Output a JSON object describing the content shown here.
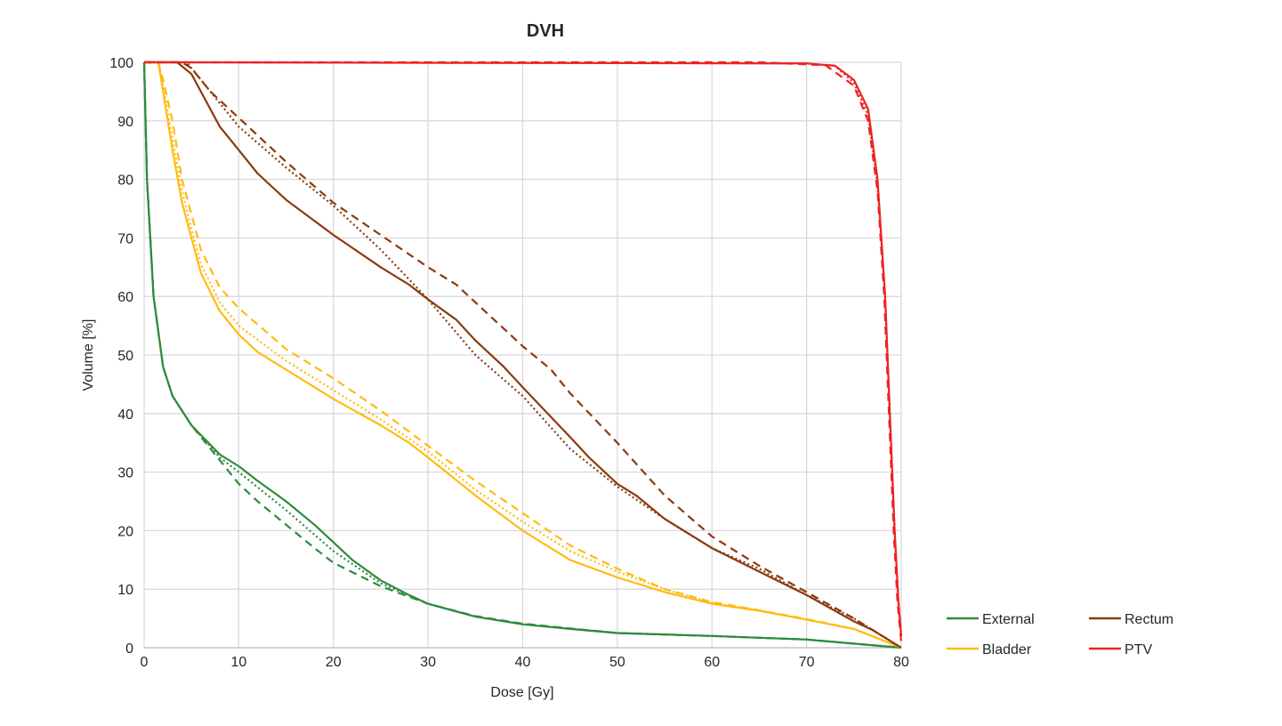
{
  "chart_data": {
    "type": "line",
    "title": "DVH",
    "xlabel": "Dose [Gy]",
    "ylabel": "Volume [%]",
    "xlim": [
      0,
      80
    ],
    "ylim": [
      0,
      100
    ],
    "xticks": [
      0,
      10,
      20,
      30,
      40,
      50,
      60,
      70,
      80
    ],
    "yticks": [
      0,
      10,
      20,
      30,
      40,
      50,
      60,
      70,
      80,
      90,
      100
    ],
    "grid": true,
    "legend_position": "bottom-right",
    "legend": [
      {
        "name": "External",
        "color": "#2e8b3e"
      },
      {
        "name": "Rectum",
        "color": "#8b3a0f"
      },
      {
        "name": "Bladder",
        "color": "#ffbb11"
      },
      {
        "name": "PTV",
        "color": "#ee2222"
      }
    ],
    "series": [
      {
        "name": "External",
        "style": "solid",
        "color": "#2e8b3e",
        "points": [
          [
            0,
            100
          ],
          [
            0.3,
            80
          ],
          [
            1,
            60
          ],
          [
            2,
            48
          ],
          [
            3,
            43
          ],
          [
            5,
            38
          ],
          [
            8,
            33
          ],
          [
            10,
            31
          ],
          [
            12,
            28.5
          ],
          [
            15,
            25
          ],
          [
            18,
            21
          ],
          [
            20,
            18
          ],
          [
            22,
            15
          ],
          [
            25,
            11.5
          ],
          [
            28,
            9
          ],
          [
            30,
            7.5
          ],
          [
            35,
            5.3
          ],
          [
            40,
            4
          ],
          [
            45,
            3.2
          ],
          [
            50,
            2.5
          ],
          [
            60,
            2
          ],
          [
            70,
            1.4
          ],
          [
            80,
            0
          ]
        ]
      },
      {
        "name": "External",
        "style": "dashed",
        "color": "#2e8b3e",
        "points": [
          [
            0,
            100
          ],
          [
            0.3,
            80
          ],
          [
            1,
            60
          ],
          [
            2,
            48
          ],
          [
            3,
            43
          ],
          [
            5,
            38
          ],
          [
            6,
            36
          ],
          [
            8,
            32
          ],
          [
            10,
            28
          ],
          [
            12,
            25
          ],
          [
            15,
            21
          ],
          [
            18,
            17
          ],
          [
            20,
            14.5
          ],
          [
            25,
            10.5
          ],
          [
            30,
            7.5
          ],
          [
            35,
            5.4
          ],
          [
            40,
            4.1
          ],
          [
            45,
            3.3
          ],
          [
            50,
            2.5
          ],
          [
            60,
            2
          ],
          [
            70,
            1.4
          ],
          [
            80,
            0
          ]
        ]
      },
      {
        "name": "External",
        "style": "dotted",
        "color": "#2e8b3e",
        "points": [
          [
            0,
            100
          ],
          [
            0.3,
            80
          ],
          [
            1,
            60
          ],
          [
            2,
            48
          ],
          [
            3,
            43
          ],
          [
            5,
            38
          ],
          [
            8,
            32.5
          ],
          [
            10,
            30
          ],
          [
            15,
            23.5
          ],
          [
            20,
            16.5
          ],
          [
            25,
            11
          ],
          [
            30,
            7.5
          ],
          [
            35,
            5.3
          ],
          [
            40,
            4
          ],
          [
            50,
            2.5
          ],
          [
            60,
            2
          ],
          [
            70,
            1.4
          ],
          [
            80,
            0
          ]
        ]
      },
      {
        "name": "Bladder",
        "style": "solid",
        "color": "#ffbb11",
        "points": [
          [
            0,
            100
          ],
          [
            1.5,
            100
          ],
          [
            2,
            95
          ],
          [
            3,
            85
          ],
          [
            4,
            76
          ],
          [
            5,
            70
          ],
          [
            6,
            64
          ],
          [
            8,
            57.5
          ],
          [
            10,
            53.5
          ],
          [
            12,
            50.5
          ],
          [
            15,
            47.5
          ],
          [
            20,
            42.5
          ],
          [
            25,
            38
          ],
          [
            28,
            35
          ],
          [
            30,
            32.5
          ],
          [
            35,
            26
          ],
          [
            40,
            20
          ],
          [
            45,
            15
          ],
          [
            50,
            12
          ],
          [
            55,
            9.5
          ],
          [
            60,
            7.5
          ],
          [
            65,
            6.3
          ],
          [
            70,
            4.8
          ],
          [
            75,
            3.2
          ],
          [
            80,
            0
          ]
        ]
      },
      {
        "name": "Bladder",
        "style": "dashed",
        "color": "#ffbb11",
        "points": [
          [
            0,
            100
          ],
          [
            1.5,
            100
          ],
          [
            2,
            97
          ],
          [
            3,
            90
          ],
          [
            4,
            80
          ],
          [
            5,
            74
          ],
          [
            6,
            68
          ],
          [
            8,
            61.5
          ],
          [
            10,
            58
          ],
          [
            15,
            51
          ],
          [
            20,
            46
          ],
          [
            25,
            40.5
          ],
          [
            30,
            34.5
          ],
          [
            35,
            28.5
          ],
          [
            40,
            23
          ],
          [
            45,
            17.5
          ],
          [
            50,
            13.5
          ],
          [
            55,
            10
          ],
          [
            60,
            7.8
          ],
          [
            65,
            6.4
          ],
          [
            70,
            4.9
          ],
          [
            75,
            3.2
          ],
          [
            80,
            0
          ]
        ]
      },
      {
        "name": "Bladder",
        "style": "dotted",
        "color": "#ffbb11",
        "points": [
          [
            0,
            100
          ],
          [
            1.5,
            100
          ],
          [
            2,
            96
          ],
          [
            3,
            87
          ],
          [
            4,
            78
          ],
          [
            5,
            71.5
          ],
          [
            6,
            65.5
          ],
          [
            8,
            59
          ],
          [
            10,
            55
          ],
          [
            15,
            49
          ],
          [
            20,
            44
          ],
          [
            25,
            39
          ],
          [
            30,
            33.5
          ],
          [
            35,
            27
          ],
          [
            40,
            21.5
          ],
          [
            45,
            16.5
          ],
          [
            50,
            13
          ],
          [
            55,
            10
          ],
          [
            60,
            7.7
          ],
          [
            65,
            6.4
          ],
          [
            70,
            4.8
          ],
          [
            75,
            3.2
          ],
          [
            80,
            0
          ]
        ]
      },
      {
        "name": "Rectum",
        "style": "solid",
        "color": "#8b3a0f",
        "points": [
          [
            0,
            100
          ],
          [
            3.5,
            100
          ],
          [
            5,
            98
          ],
          [
            6,
            95
          ],
          [
            8,
            89
          ],
          [
            10,
            85
          ],
          [
            12,
            81
          ],
          [
            15,
            76.5
          ],
          [
            20,
            70.5
          ],
          [
            25,
            65
          ],
          [
            28,
            62
          ],
          [
            30,
            59.5
          ],
          [
            33,
            56
          ],
          [
            35,
            52.5
          ],
          [
            38,
            48
          ],
          [
            40,
            44.5
          ],
          [
            45,
            36
          ],
          [
            47,
            32.5
          ],
          [
            50,
            28
          ],
          [
            52,
            26
          ],
          [
            55,
            22
          ],
          [
            60,
            17
          ],
          [
            65,
            13
          ],
          [
            70,
            9
          ],
          [
            75,
            4.5
          ],
          [
            77,
            3
          ],
          [
            80,
            0
          ]
        ]
      },
      {
        "name": "Rectum",
        "style": "dashed",
        "color": "#8b3a0f",
        "points": [
          [
            0,
            100
          ],
          [
            4,
            100
          ],
          [
            5,
            99
          ],
          [
            7,
            95
          ],
          [
            10,
            90.5
          ],
          [
            15,
            83
          ],
          [
            20,
            76
          ],
          [
            25,
            70.5
          ],
          [
            30,
            65
          ],
          [
            33,
            62
          ],
          [
            35,
            59
          ],
          [
            40,
            51.5
          ],
          [
            43,
            47.5
          ],
          [
            45,
            43.5
          ],
          [
            50,
            35
          ],
          [
            55,
            26
          ],
          [
            60,
            19
          ],
          [
            65,
            14
          ],
          [
            70,
            9.5
          ],
          [
            75,
            5
          ],
          [
            78,
            2
          ],
          [
            80,
            0
          ]
        ]
      },
      {
        "name": "Rectum",
        "style": "dotted",
        "color": "#8b3a0f",
        "points": [
          [
            0,
            100
          ],
          [
            4.5,
            100
          ],
          [
            6,
            97
          ],
          [
            10,
            89
          ],
          [
            15,
            82
          ],
          [
            20,
            75.5
          ],
          [
            25,
            68
          ],
          [
            30,
            59.5
          ],
          [
            35,
            50
          ],
          [
            40,
            43
          ],
          [
            45,
            34
          ],
          [
            50,
            27.5
          ],
          [
            55,
            22
          ],
          [
            60,
            17
          ],
          [
            65,
            13.5
          ],
          [
            70,
            9
          ],
          [
            75,
            5
          ],
          [
            80,
            0
          ]
        ]
      },
      {
        "name": "PTV",
        "style": "solid",
        "color": "#ee2222",
        "points": [
          [
            0,
            100
          ],
          [
            70,
            99.8
          ],
          [
            73,
            99.4
          ],
          [
            75,
            97
          ],
          [
            76.5,
            92
          ],
          [
            77.5,
            80
          ],
          [
            78.3,
            60
          ],
          [
            78.8,
            40
          ],
          [
            79.3,
            20
          ],
          [
            79.7,
            8
          ],
          [
            80,
            2
          ]
        ]
      },
      {
        "name": "PTV",
        "style": "dashed",
        "color": "#ee2222",
        "points": [
          [
            0,
            100
          ],
          [
            65,
            100
          ],
          [
            72,
            99.5
          ],
          [
            75,
            96
          ],
          [
            76.5,
            90
          ],
          [
            77.5,
            78
          ],
          [
            78.2,
            60
          ],
          [
            78.7,
            40
          ],
          [
            79.2,
            20
          ],
          [
            79.6,
            8
          ],
          [
            80,
            1
          ]
        ]
      },
      {
        "name": "PTV",
        "style": "dotted",
        "color": "#ee2222",
        "points": [
          [
            0,
            100
          ],
          [
            70,
            99.8
          ],
          [
            73,
            99.4
          ],
          [
            75,
            96.5
          ],
          [
            76.5,
            91
          ],
          [
            77.5,
            79
          ],
          [
            78.3,
            60
          ],
          [
            78.8,
            40
          ],
          [
            79.3,
            20
          ],
          [
            79.7,
            8
          ],
          [
            80,
            2
          ]
        ]
      }
    ]
  }
}
